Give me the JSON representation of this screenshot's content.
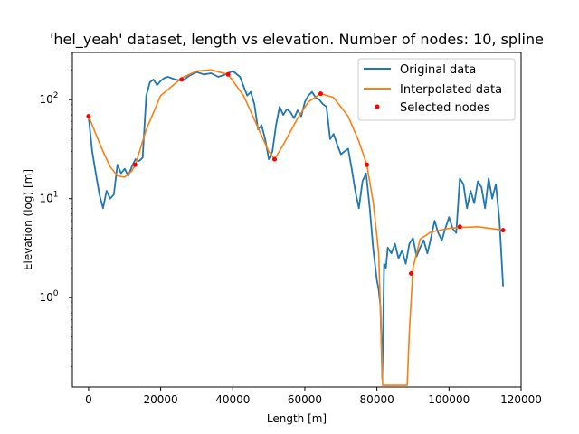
{
  "chart_data": {
    "type": "line",
    "title": "'hel_yeah' dataset, length vs elevation. Number of nodes: 10, spline",
    "xlabel": "Length [m]",
    "ylabel": "Elevation (log) [m]",
    "xlim": [
      -4500,
      120000
    ],
    "ylim": [
      0.125,
      300
    ],
    "yscale": "log",
    "grid": false,
    "legend_position": "top-right",
    "x_ticks": [
      {
        "value": 0,
        "label": "0"
      },
      {
        "value": 20000,
        "label": "20000"
      },
      {
        "value": 40000,
        "label": "40000"
      },
      {
        "value": 60000,
        "label": "60000"
      },
      {
        "value": 80000,
        "label": "80000"
      },
      {
        "value": 100000,
        "label": "100000"
      },
      {
        "value": 120000,
        "label": "120000"
      }
    ],
    "y_ticks": [
      {
        "value": 1,
        "base": "10",
        "exp": "0"
      },
      {
        "value": 10,
        "base": "10",
        "exp": "1"
      },
      {
        "value": 100,
        "base": "10",
        "exp": "2"
      }
    ],
    "series": [
      {
        "name": "Original data",
        "color": "#1f77b4",
        "x": [
          0,
          1000,
          2000,
          3000,
          4000,
          5000,
          6000,
          7000,
          8000,
          9000,
          10000,
          11000,
          12000,
          13000,
          14000,
          15000,
          16000,
          17000,
          18000,
          19000,
          20000,
          21000,
          22000,
          24000,
          26000,
          28000,
          30000,
          32000,
          34000,
          36000,
          38000,
          40000,
          42000,
          44000,
          45000,
          46000,
          47000,
          48000,
          49000,
          50000,
          51000,
          52000,
          53000,
          54000,
          55000,
          56000,
          57000,
          58000,
          59000,
          60000,
          61000,
          62000,
          63000,
          64000,
          65000,
          66000,
          67000,
          68000,
          69000,
          70000,
          71000,
          72000,
          73000,
          74000,
          75000,
          76000,
          77000,
          78000,
          79000,
          80000,
          80500,
          81000,
          81500,
          82000,
          82500,
          83000,
          84000,
          85000,
          86000,
          87000,
          88000,
          89000,
          90000,
          91000,
          92000,
          93000,
          94000,
          95000,
          96000,
          97000,
          98000,
          99000,
          100000,
          101000,
          102000,
          103000,
          104000,
          105000,
          106000,
          107000,
          108000,
          109000,
          110000,
          111000,
          112000,
          113000,
          114000,
          115000
        ],
        "y": [
          68,
          30,
          18,
          11,
          8,
          12,
          10,
          11,
          22,
          18,
          20,
          17,
          21,
          25,
          24,
          26,
          110,
          150,
          160,
          140,
          155,
          165,
          170,
          160,
          155,
          175,
          190,
          180,
          185,
          170,
          180,
          195,
          170,
          110,
          120,
          90,
          50,
          55,
          40,
          25,
          30,
          55,
          85,
          70,
          80,
          75,
          65,
          78,
          68,
          95,
          110,
          120,
          105,
          100,
          90,
          85,
          40,
          45,
          35,
          28,
          30,
          32,
          20,
          12,
          8,
          15,
          18,
          8,
          3,
          1.5,
          1.2,
          0.8,
          0.15,
          2.2,
          2.0,
          3.2,
          2.8,
          3.5,
          2.5,
          3.0,
          2.2,
          3.5,
          4.0,
          2.6,
          3.2,
          3.8,
          2.8,
          4.0,
          6.0,
          4.5,
          3.8,
          5.0,
          6.5,
          5.0,
          4.5,
          16,
          14,
          8,
          12,
          9,
          15,
          13,
          8,
          16,
          10,
          14,
          6,
          1.3
        ]
      },
      {
        "name": "Interpolated data",
        "color": "#ff7f0e",
        "x": [
          0,
          2000,
          4000,
          6000,
          8000,
          10000,
          12000,
          13000,
          16000,
          20000,
          25800,
          30000,
          34000,
          38700,
          43000,
          47000,
          50000,
          51600,
          54000,
          58000,
          61000,
          64400,
          68000,
          72000,
          75000,
          77200,
          79000,
          80500,
          81600,
          88400,
          89000,
          90000,
          92000,
          95000,
          100000,
          103000,
          108000,
          115000
        ],
        "y": [
          68,
          45,
          30,
          21,
          17,
          16.5,
          19,
          22,
          50,
          110,
          165,
          195,
          200,
          180,
          110,
          52,
          30,
          25,
          35,
          65,
          95,
          115,
          105,
          68,
          38,
          22,
          9,
          2.8,
          0.13,
          0.13,
          0.45,
          2.0,
          3.9,
          4.6,
          5.0,
          5.1,
          5.2,
          4.8
        ]
      },
      {
        "name": "Selected nodes",
        "color": "#ff0000",
        "x": [
          0,
          12900,
          25800,
          38700,
          51600,
          64400,
          77200,
          89500,
          103000,
          115000
        ],
        "y": [
          68,
          22,
          160,
          180,
          25,
          115,
          22,
          1.75,
          5.2,
          4.8
        ]
      }
    ]
  }
}
